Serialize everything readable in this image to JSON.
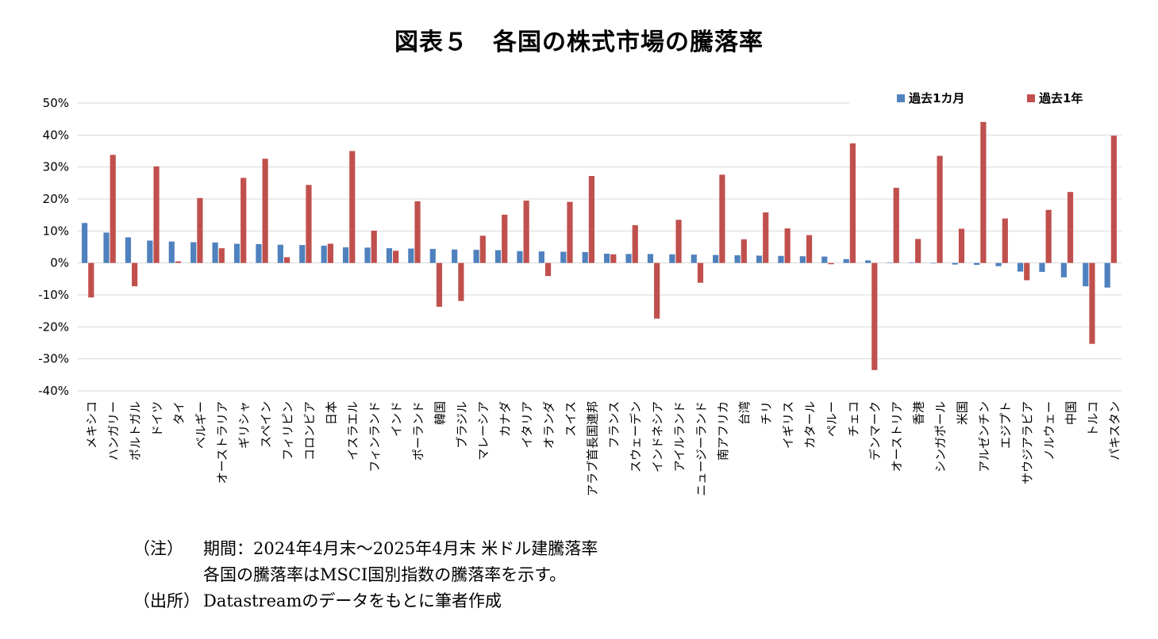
{
  "title": "図表５　各国の株式市場の騰落率",
  "chart_data": {
    "type": "bar",
    "ylim": [
      -40,
      50
    ],
    "yticks": [
      "50%",
      "40%",
      "30%",
      "20%",
      "10%",
      "0%",
      "-10%",
      "-20%",
      "-30%",
      "-40%"
    ],
    "ytick_values": [
      50,
      40,
      30,
      20,
      10,
      0,
      -10,
      -20,
      -30,
      -40
    ],
    "grid": true,
    "legend_position": "top-right",
    "categories": [
      "メキシコ",
      "ハンガリー",
      "ポルトガル",
      "ドイツ",
      "タイ",
      "ベルギー",
      "オーストラリア",
      "ギリシャ",
      "スペイン",
      "フィリピン",
      "コロンビア",
      "日本",
      "イスラエル",
      "フィンランド",
      "インド",
      "ポーランド",
      "韓国",
      "ブラジル",
      "マレーシア",
      "カナダ",
      "イタリア",
      "オランダ",
      "スイス",
      "アラブ首長国連邦",
      "フランス",
      "スウェーデン",
      "インドネシア",
      "アイルランド",
      "ニュージーランド",
      "南アフリカ",
      "台湾",
      "チリ",
      "イギリス",
      "カタール",
      "ペルー",
      "チェコ",
      "デンマーク",
      "オーストリア",
      "香港",
      "シンガポール",
      "米国",
      "アルゼンチン",
      "エジプト",
      "サウジアラビア",
      "ノルウェー",
      "中国",
      "トルコ",
      "パキスタン"
    ],
    "series": [
      {
        "name": "過去1カ月",
        "color": "#4F81BD",
        "values": [
          12.5,
          9.5,
          8.0,
          7.0,
          6.7,
          6.5,
          6.4,
          6.0,
          5.9,
          5.7,
          5.6,
          5.4,
          4.9,
          4.8,
          4.6,
          4.5,
          4.4,
          4.2,
          4.1,
          4.0,
          3.7,
          3.6,
          3.5,
          3.4,
          2.9,
          2.8,
          2.8,
          2.7,
          2.6,
          2.5,
          2.4,
          2.3,
          2.2,
          2.1,
          2.0,
          1.2,
          0.8,
          0.1,
          0.1,
          -0.1,
          -0.5,
          -0.6,
          -1.0,
          -2.7,
          -2.8,
          -4.5,
          -7.3,
          -7.7
        ]
      },
      {
        "name": "過去1年",
        "color": "#C0504D",
        "values": [
          -10.8,
          33.8,
          -7.3,
          30.2,
          0.5,
          20.3,
          4.6,
          26.6,
          32.6,
          1.8,
          24.4,
          6.0,
          35.0,
          10.1,
          3.8,
          19.3,
          -13.7,
          -11.9,
          8.5,
          15.1,
          19.5,
          -4.1,
          19.1,
          27.2,
          2.7,
          11.8,
          -17.4,
          13.5,
          -6.2,
          27.6,
          7.4,
          15.8,
          10.8,
          8.7,
          -0.4,
          37.4,
          -33.5,
          23.5,
          7.5,
          33.5,
          10.7,
          44.1,
          13.9,
          -5.4,
          16.6,
          22.2,
          -25.3,
          39.8
        ]
      }
    ]
  },
  "notes": {
    "note_label": "（注）",
    "note_line1": "期間：2024年4月末～2025年4月末 米ドル建騰落率",
    "note_line2": "各国の騰落率はMSCI国別指数の騰落率を示す。",
    "source_label": "（出所）",
    "source_text": "Datastreamのデータをもとに筆者作成"
  }
}
